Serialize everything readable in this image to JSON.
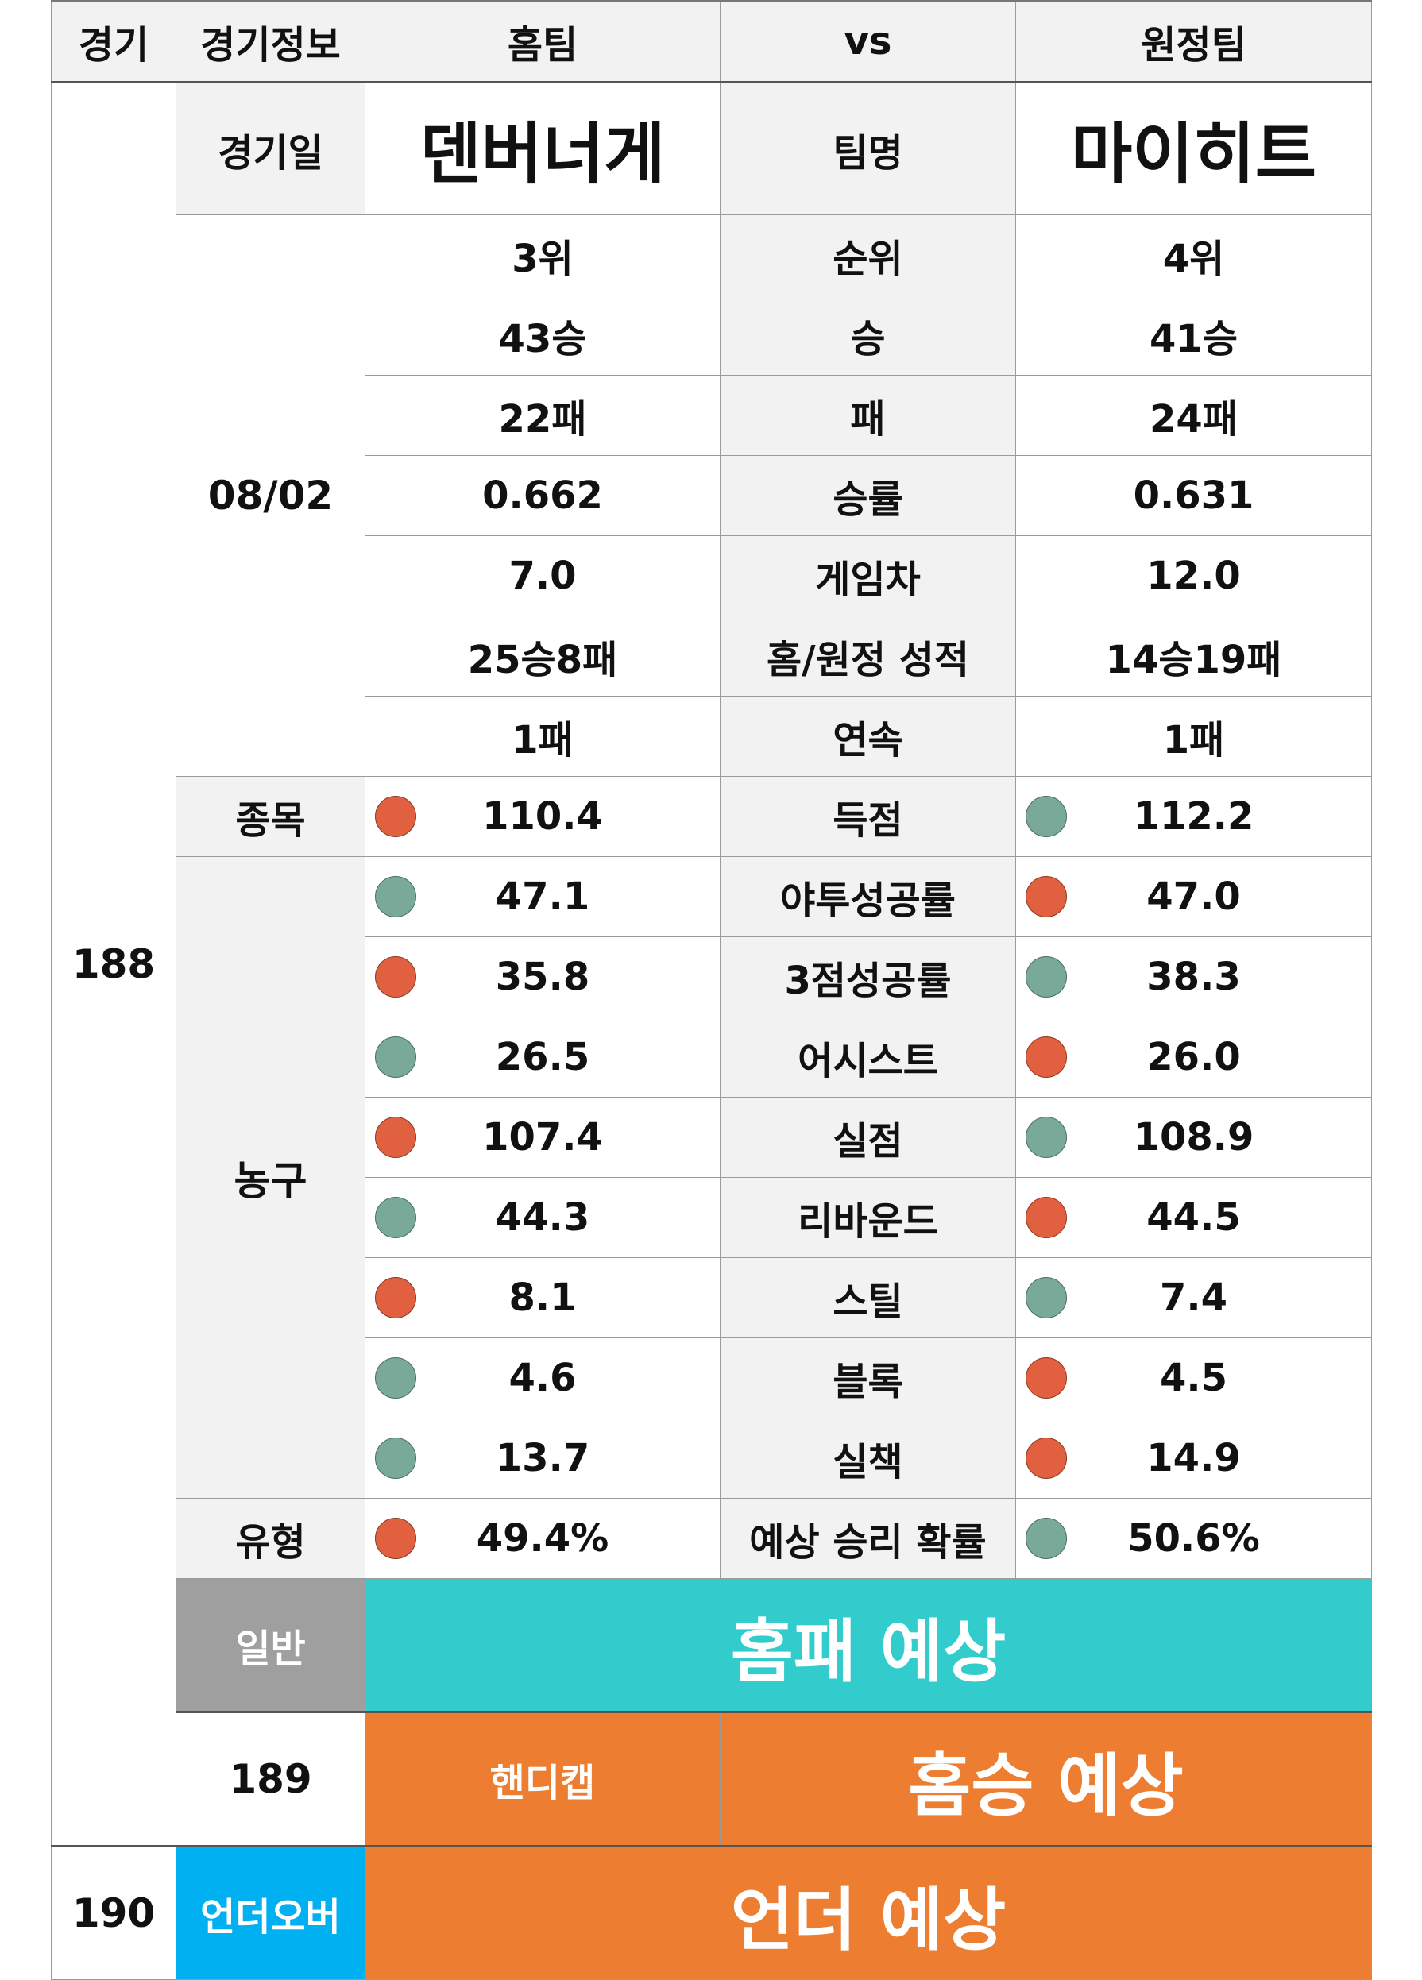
{
  "header": {
    "col_game": "경기",
    "col_info": "경기정보",
    "col_home": "홈팀",
    "col_vs": "vs",
    "col_away": "원정팀"
  },
  "match": {
    "game_no": "188",
    "date_label": "경기일",
    "date": "08/02",
    "team_label": "팀명",
    "home_team": "덴버너게",
    "away_team": "마이히트",
    "sport_label": "종목",
    "sport": "농구",
    "type_label": "유형"
  },
  "record_rows": [
    {
      "label": "순위",
      "home": "3위",
      "away": "4위"
    },
    {
      "label": "승",
      "home": "43승",
      "away": "41승"
    },
    {
      "label": "패",
      "home": "22패",
      "away": "24패"
    },
    {
      "label": "승률",
      "home": "0.662",
      "away": "0.631"
    },
    {
      "label": "게임차",
      "home": "7.0",
      "away": "12.0"
    },
    {
      "label": "홈/원정 성적",
      "home": "25승8패",
      "away": "14승19패"
    },
    {
      "label": "연속",
      "home": "1패",
      "away": "1패"
    }
  ],
  "stat_rows": [
    {
      "label": "득점",
      "home": "110.4",
      "home_dot": "red",
      "away": "112.2",
      "away_dot": "green"
    },
    {
      "label": "야투성공률",
      "home": "47.1",
      "home_dot": "green",
      "away": "47.0",
      "away_dot": "red"
    },
    {
      "label": "3점성공률",
      "home": "35.8",
      "home_dot": "red",
      "away": "38.3",
      "away_dot": "green"
    },
    {
      "label": "어시스트",
      "home": "26.5",
      "home_dot": "green",
      "away": "26.0",
      "away_dot": "red"
    },
    {
      "label": "실점",
      "home": "107.4",
      "home_dot": "red",
      "away": "108.9",
      "away_dot": "green"
    },
    {
      "label": "리바운드",
      "home": "44.3",
      "home_dot": "green",
      "away": "44.5",
      "away_dot": "red"
    },
    {
      "label": "스틸",
      "home": "8.1",
      "home_dot": "red",
      "away": "7.4",
      "away_dot": "green"
    },
    {
      "label": "블록",
      "home": "4.6",
      "home_dot": "green",
      "away": "4.5",
      "away_dot": "red"
    },
    {
      "label": "실책",
      "home": "13.7",
      "home_dot": "green",
      "away": "14.9",
      "away_dot": "red"
    },
    {
      "label": "예상 승리 확률",
      "home": "49.4%",
      "home_dot": "red",
      "away": "50.6%",
      "away_dot": "green"
    }
  ],
  "predictions": [
    {
      "game_no": "",
      "category": "일반",
      "text": "홈패 예상"
    },
    {
      "game_no": "189",
      "category": "핸디캡",
      "text": "홈승 예상"
    },
    {
      "game_no": "190",
      "category": "언더오버",
      "text": "언더 예상"
    }
  ],
  "colors": {
    "dot_red": "#e0603f",
    "dot_green": "#79a998",
    "teal": "#33cccc",
    "orange": "#ed7d31",
    "blue": "#00b0f0",
    "gray": "#9f9f9f"
  }
}
